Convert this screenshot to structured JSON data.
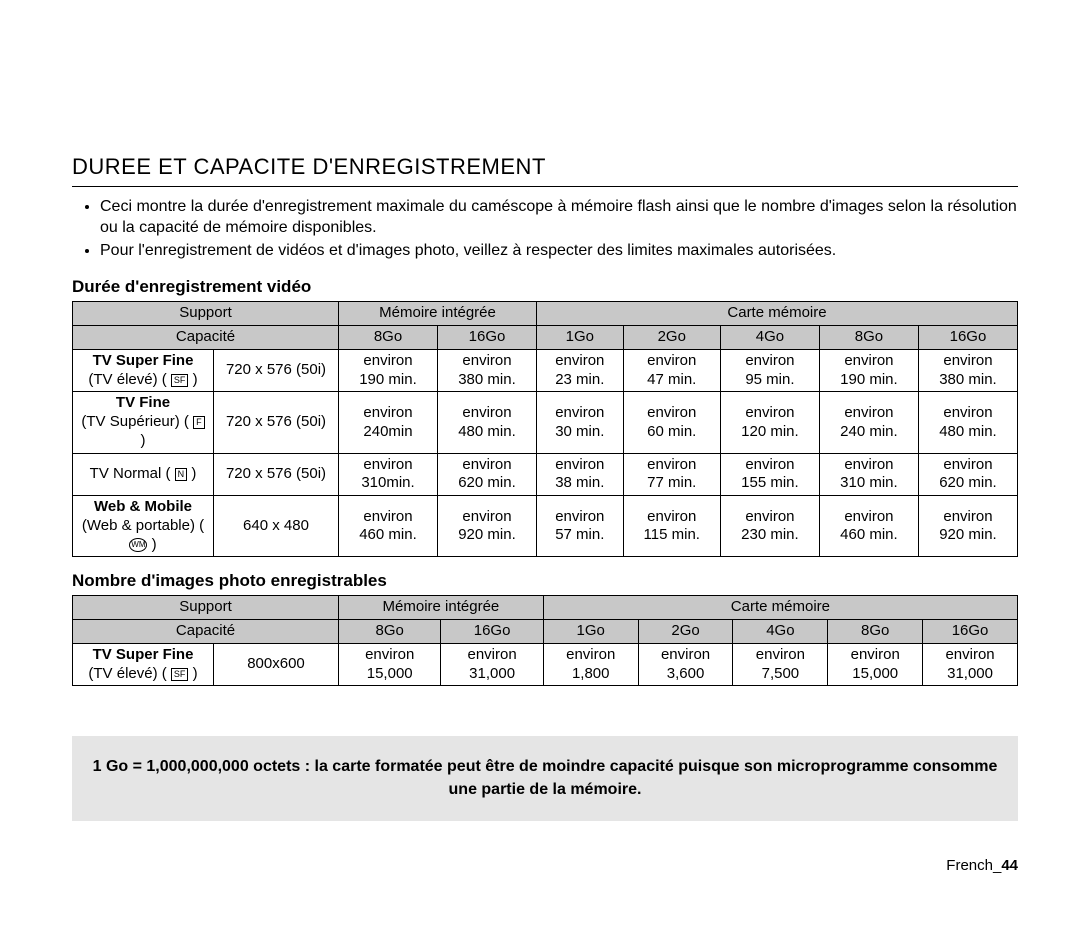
{
  "title": "DUREE ET CAPACITE D'ENREGISTREMENT",
  "bullets": [
    "Ceci montre la durée d'enregistrement maximale du caméscope à mémoire flash ainsi que le nombre d'images selon la résolution ou la capacité de mémoire disponibles.",
    "Pour l'enregistrement de vidéos et d'images photo, veillez à respecter des limites maximales autorisées."
  ],
  "video": {
    "heading": "Durée d'enregistrement vidéo",
    "support_label": "Support",
    "mem_int": "Mémoire intégrée",
    "mem_card": "Carte mémoire",
    "capacity_label": "Capacité",
    "capacities": [
      "8Go",
      "16Go",
      "1Go",
      "2Go",
      "4Go",
      "8Go",
      "16Go"
    ],
    "rows": [
      {
        "name_line1": "TV Super Fine",
        "name_line2": "(TV élevé) ",
        "icon": "SF",
        "icon_type": "box",
        "res": "720 x 576 (50i)",
        "cells": [
          "190 min.",
          "380 min.",
          "23 min.",
          "47 min.",
          "95 min.",
          "190 min.",
          "380 min."
        ]
      },
      {
        "name_line1": "TV Fine",
        "name_line2": "(TV Supérieur) ",
        "icon": "F",
        "icon_type": "box",
        "res": "720 x 576 (50i)",
        "cells": [
          "240min",
          "480 min.",
          "30 min.",
          "60 min.",
          "120 min.",
          "240 min.",
          "480 min."
        ]
      },
      {
        "name_line1": "TV Normal ",
        "name_line2": "",
        "icon": "N",
        "icon_type": "box",
        "res": "720 x 576 (50i)",
        "cells": [
          "310min.",
          "620 min.",
          "38 min.",
          "77 min.",
          "155 min.",
          "310 min.",
          "620 min."
        ]
      },
      {
        "name_line1": "Web & Mobile",
        "name_line2": "(Web & portable) ",
        "icon": "WM",
        "icon_type": "circle",
        "res": "640 x 480",
        "cells": [
          "460 min.",
          "920 min.",
          "57 min.",
          "115 min.",
          "230 min.",
          "460 min.",
          "920 min."
        ]
      }
    ]
  },
  "photo": {
    "heading": "Nombre d'images photo enregistrables",
    "support_label": "Support",
    "mem_int": "Mémoire intégrée",
    "mem_card": "Carte mémoire",
    "capacity_label": "Capacité",
    "capacities": [
      "8Go",
      "16Go",
      "1Go",
      "2Go",
      "4Go",
      "8Go",
      "16Go"
    ],
    "rows": [
      {
        "name_line1": "TV Super Fine",
        "name_line2": "(TV élevé) ",
        "icon": "SF",
        "icon_type": "box",
        "res": "800x600",
        "cells": [
          "15,000",
          "31,000",
          "1,800",
          "3,600",
          "7,500",
          "15,000",
          "31,000"
        ]
      }
    ]
  },
  "environ": "environ",
  "note": "1 Go = 1,000,000,000 octets : la carte formatée peut être de moindre capacité puisque son microprogramme consomme une partie de la mémoire.",
  "page_lang": "French",
  "page_no": "44",
  "colors": {
    "header_bg": "#c8c8c8",
    "note_bg": "#e5e5e5",
    "border": "#000000"
  }
}
